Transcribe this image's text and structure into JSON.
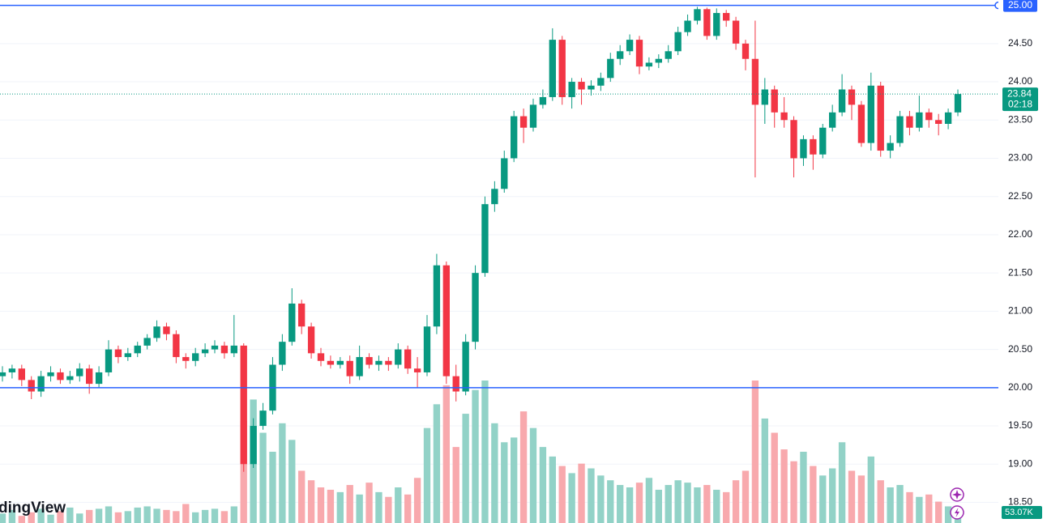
{
  "chart_data": {
    "type": "candlestick",
    "ylim": [
      18.23,
      25.07
    ],
    "yticks": [
      {
        "value": 25,
        "label": "25.00"
      },
      {
        "value": 24.5,
        "label": "24.50"
      },
      {
        "value": 24,
        "label": "24.00"
      },
      {
        "value": 23.5,
        "label": "23.50"
      },
      {
        "value": 23,
        "label": "23.00"
      },
      {
        "value": 22.5,
        "label": "22.50"
      },
      {
        "value": 22,
        "label": "22.00"
      },
      {
        "value": 21.5,
        "label": "21.50"
      },
      {
        "value": 21,
        "label": "21.00"
      },
      {
        "value": 20.5,
        "label": "20.50"
      },
      {
        "value": 20,
        "label": "20.00"
      },
      {
        "value": 19.5,
        "label": "19.50"
      },
      {
        "value": 19,
        "label": "19.00"
      },
      {
        "value": 18.5,
        "label": "18.50"
      }
    ],
    "grid": true,
    "up_color": "#089981",
    "down_color": "#f23645",
    "up_volume_color": "#92d2c7",
    "down_volume_color": "#f8a9ad",
    "hline_color": "#2962ff",
    "hlines": [
      25,
      20
    ],
    "last_price": 23.84,
    "countdown": "02:18",
    "volume_readout": "53.07K",
    "watermark": "dingView",
    "open": [
      20.15,
      20.2,
      20.25,
      20.1,
      19.95,
      20.15,
      20.2,
      20.1,
      20.15,
      20.25,
      20.05,
      20.2,
      20.5,
      20.4,
      20.45,
      20.55,
      20.65,
      20.8,
      20.7,
      20.4,
      20.35,
      20.45,
      20.5,
      20.55,
      20.45,
      20.55,
      19.0,
      19.5,
      19.7,
      20.3,
      20.6,
      21.1,
      20.8,
      20.45,
      20.35,
      20.3,
      20.35,
      20.15,
      20.4,
      20.3,
      20.35,
      20.3,
      20.5,
      20.25,
      20.2,
      20.8,
      21.6,
      20.15,
      19.95,
      20.6,
      21.5,
      22.4,
      22.6,
      23.0,
      23.55,
      23.4,
      23.7,
      23.8,
      24.55,
      23.8,
      24.0,
      23.9,
      23.95,
      24.05,
      24.3,
      24.4,
      24.55,
      24.2,
      24.25,
      24.3,
      24.4,
      24.65,
      24.8,
      24.95,
      24.6,
      24.9,
      24.8,
      24.5,
      24.3,
      23.7,
      23.9,
      23.6,
      23.5,
      23.0,
      23.25,
      23.05,
      23.4,
      23.6,
      23.9,
      23.7,
      23.2,
      23.95,
      23.1,
      23.2,
      23.55,
      23.4,
      23.6,
      23.5,
      23.45,
      23.6
    ],
    "high": [
      20.28,
      20.3,
      20.3,
      20.15,
      20.22,
      20.28,
      20.25,
      20.22,
      20.32,
      20.3,
      20.28,
      20.62,
      20.55,
      20.52,
      20.6,
      20.7,
      20.88,
      20.85,
      20.75,
      20.45,
      20.52,
      20.58,
      20.62,
      20.6,
      20.95,
      20.58,
      19.6,
      19.8,
      20.4,
      20.7,
      21.3,
      21.15,
      20.85,
      20.52,
      20.42,
      20.4,
      20.42,
      20.55,
      20.45,
      20.42,
      20.4,
      20.58,
      20.55,
      20.4,
      20.95,
      21.75,
      21.65,
      20.3,
      20.7,
      21.6,
      22.5,
      22.7,
      23.1,
      23.62,
      23.65,
      23.78,
      23.9,
      24.7,
      24.6,
      24.05,
      24.05,
      24.02,
      24.12,
      24.38,
      24.48,
      24.62,
      24.6,
      24.32,
      24.36,
      24.48,
      24.72,
      24.88,
      24.98,
      24.97,
      24.96,
      24.94,
      24.85,
      24.55,
      24.8,
      24.05,
      23.95,
      23.8,
      23.55,
      23.3,
      23.3,
      23.45,
      23.7,
      24.1,
      23.95,
      23.75,
      24.12,
      24.0,
      23.3,
      23.62,
      23.62,
      23.82,
      23.65,
      23.58,
      23.65,
      23.9
    ],
    "low": [
      20.08,
      20.12,
      20.02,
      19.85,
      19.88,
      20.08,
      20.05,
      20.05,
      20.08,
      19.92,
      20.0,
      20.15,
      20.32,
      20.35,
      20.4,
      20.5,
      20.6,
      20.62,
      20.32,
      20.25,
      20.28,
      20.4,
      20.45,
      20.38,
      20.4,
      18.9,
      18.95,
      19.45,
      19.65,
      20.22,
      20.55,
      20.7,
      20.38,
      20.28,
      20.25,
      20.25,
      20.05,
      20.1,
      20.25,
      20.22,
      20.22,
      20.25,
      20.18,
      20.0,
      20.15,
      20.7,
      20.05,
      19.82,
      19.9,
      20.5,
      21.45,
      22.3,
      22.55,
      22.95,
      23.2,
      23.35,
      23.65,
      23.75,
      23.7,
      23.65,
      23.7,
      23.82,
      23.88,
      24.0,
      24.22,
      24.35,
      24.1,
      24.15,
      24.18,
      24.25,
      24.35,
      24.6,
      24.75,
      24.55,
      24.55,
      24.72,
      24.42,
      24.15,
      22.75,
      23.45,
      23.4,
      23.4,
      22.75,
      22.9,
      22.85,
      23.0,
      23.35,
      23.55,
      23.5,
      23.15,
      23.1,
      23.02,
      23.0,
      23.15,
      23.3,
      23.35,
      23.4,
      23.3,
      23.38,
      23.55
    ],
    "close": [
      20.2,
      20.25,
      20.1,
      19.95,
      20.15,
      20.2,
      20.1,
      20.15,
      20.25,
      20.05,
      20.2,
      20.5,
      20.4,
      20.45,
      20.55,
      20.65,
      20.8,
      20.7,
      20.4,
      20.35,
      20.45,
      20.5,
      20.55,
      20.45,
      20.55,
      19.0,
      19.5,
      19.7,
      20.3,
      20.6,
      21.1,
      20.8,
      20.45,
      20.35,
      20.3,
      20.35,
      20.15,
      20.4,
      20.3,
      20.35,
      20.3,
      20.5,
      20.25,
      20.2,
      20.8,
      21.6,
      20.15,
      19.95,
      20.6,
      21.5,
      22.4,
      22.6,
      23.0,
      23.55,
      23.4,
      23.7,
      23.8,
      24.55,
      23.8,
      24.0,
      23.9,
      23.95,
      24.05,
      24.3,
      24.4,
      24.55,
      24.2,
      24.25,
      24.3,
      24.4,
      24.65,
      24.8,
      24.95,
      24.6,
      24.9,
      24.8,
      24.5,
      24.3,
      23.7,
      23.9,
      23.6,
      23.5,
      23.0,
      23.25,
      23.05,
      23.4,
      23.6,
      23.9,
      23.7,
      23.2,
      23.95,
      23.1,
      23.2,
      23.55,
      23.4,
      23.6,
      23.5,
      23.45,
      23.6,
      23.84
    ],
    "volume": [
      40,
      55,
      30,
      45,
      60,
      35,
      50,
      65,
      40,
      55,
      60,
      70,
      45,
      50,
      65,
      70,
      60,
      55,
      50,
      80,
      45,
      55,
      60,
      50,
      70,
      430,
      520,
      380,
      300,
      420,
      350,
      220,
      180,
      150,
      140,
      130,
      160,
      120,
      170,
      130,
      110,
      150,
      120,
      190,
      400,
      500,
      580,
      320,
      460,
      560,
      600,
      420,
      340,
      360,
      470,
      400,
      320,
      280,
      240,
      210,
      250,
      230,
      200,
      180,
      160,
      150,
      170,
      190,
      140,
      160,
      180,
      170,
      150,
      160,
      140,
      130,
      180,
      220,
      600,
      440,
      380,
      310,
      260,
      300,
      240,
      200,
      230,
      340,
      220,
      200,
      280,
      180,
      150,
      160,
      130,
      110,
      120,
      90,
      70,
      53.07
    ]
  }
}
